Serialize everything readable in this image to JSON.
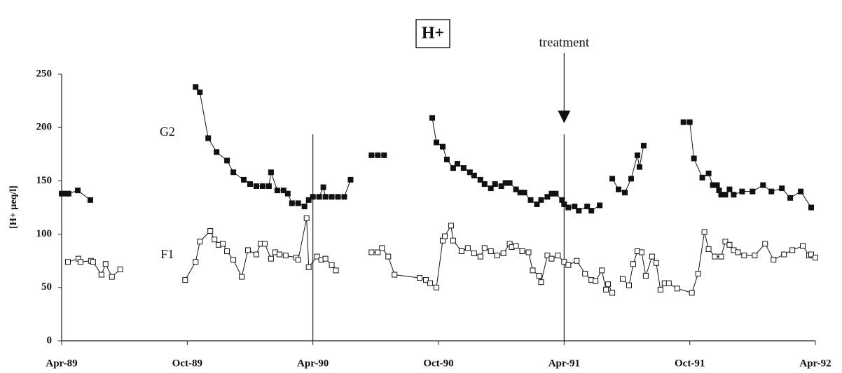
{
  "chart_data": {
    "type": "line",
    "title": "H+",
    "y_label": "[H+ µeq/l]",
    "xlim": [
      0,
      36
    ],
    "xticks": [
      {
        "value": 0,
        "label": "Apr-89"
      },
      {
        "value": 6,
        "label": "Oct-89"
      },
      {
        "value": 12,
        "label": "Apr-90"
      },
      {
        "value": 18,
        "label": "Oct-90"
      },
      {
        "value": 24,
        "label": "Apr-91"
      },
      {
        "value": 30,
        "label": "Oct-91"
      },
      {
        "value": 36,
        "label": "Apr-92"
      }
    ],
    "ylim": [
      0,
      250
    ],
    "yticks": [
      0,
      50,
      100,
      150,
      200,
      250
    ],
    "vlines": [
      12,
      24
    ],
    "annotations": [
      {
        "text": "treatment",
        "x": 24
      }
    ],
    "series": [
      {
        "name": "G2",
        "color": "#111111",
        "marker": "filled",
        "x": [
          0,
          0.23,
          0.33,
          0.77,
          1.37,
          null,
          6.4,
          6.6,
          7.0,
          7.4,
          7.9,
          8.2,
          8.7,
          9.0,
          9.3,
          9.6,
          9.9,
          10.0,
          10.3,
          10.6,
          10.8,
          11.0,
          11.3,
          11.6,
          11.8,
          12.0,
          12.3,
          12.5,
          12.6,
          12.9,
          13.2,
          13.5,
          13.8,
          null,
          14.8,
          15.1,
          15.4,
          null,
          17.7,
          17.9,
          18.2,
          18.4,
          18.7,
          18.9,
          19.2,
          19.5,
          19.7,
          20.0,
          20.2,
          20.5,
          20.7,
          21.0,
          21.2,
          21.4,
          21.7,
          21.9,
          22.1,
          22.4,
          22.7,
          22.9,
          23.2,
          23.4,
          23.6,
          23.9,
          24.0,
          24.2,
          24.5,
          24.7,
          25.1,
          25.3,
          25.7,
          null,
          26.3,
          26.6,
          26.9,
          27.2,
          27.5,
          27.6,
          27.8,
          null,
          29.7,
          30.0,
          30.2,
          30.6,
          30.9,
          31.1,
          31.3,
          31.4,
          31.5,
          31.7,
          31.9,
          32.1,
          32.5,
          33.0,
          33.5,
          33.9,
          34.4,
          34.8,
          35.3,
          35.8
        ],
        "values": [
          138,
          138,
          138,
          141,
          132,
          null,
          238,
          233,
          190,
          177,
          169,
          158,
          151,
          147,
          145,
          145,
          145,
          158,
          141,
          141,
          138,
          129,
          129,
          126,
          132,
          135,
          135,
          144,
          135,
          135,
          135,
          135,
          151,
          null,
          174,
          174,
          174,
          null,
          209,
          186,
          182,
          170,
          162,
          166,
          162,
          158,
          155,
          151,
          147,
          143,
          147,
          145,
          148,
          148,
          142,
          139,
          139,
          132,
          128,
          132,
          135,
          138,
          138,
          132,
          128,
          125,
          126,
          122,
          126,
          122,
          127,
          null,
          152,
          142,
          139,
          152,
          174,
          163,
          183,
          null,
          205,
          205,
          171,
          153,
          157,
          146,
          146,
          141,
          137,
          137,
          142,
          137,
          140,
          140,
          146,
          140,
          143,
          134,
          140,
          125
        ]
      },
      {
        "name": "F1",
        "color": "#111111",
        "marker": "open",
        "x": [
          0.3,
          0.8,
          0.9,
          1.4,
          1.5,
          1.9,
          2.1,
          2.4,
          2.8,
          null,
          5.9,
          6.4,
          6.6,
          7.1,
          7.3,
          7.5,
          7.7,
          7.9,
          8.2,
          8.6,
          8.9,
          9.3,
          9.5,
          9.7,
          10.0,
          10.2,
          10.4,
          10.7,
          11.2,
          11.3,
          11.7,
          11.8,
          12.2,
          12.4,
          12.6,
          12.9,
          13.1,
          null,
          14.8,
          15.1,
          15.3,
          15.6,
          15.9,
          17.1,
          17.4,
          17.6,
          17.9,
          18.2,
          18.3,
          18.6,
          18.7,
          19.1,
          19.4,
          19.7,
          20.0,
          20.2,
          20.5,
          20.8,
          21.1,
          21.4,
          21.5,
          21.7,
          22.0,
          22.3,
          22.5,
          22.8,
          22.9,
          23.2,
          23.4,
          23.7,
          24.0,
          24.2,
          24.6,
          25.0,
          25.3,
          25.5,
          25.8,
          26.0,
          26.1,
          26.3,
          null,
          26.8,
          27.1,
          27.3,
          27.5,
          27.7,
          27.9,
          28.2,
          28.4,
          28.6,
          28.8,
          29.0,
          29.4,
          30.1,
          30.4,
          30.7,
          30.9,
          31.2,
          31.5,
          31.7,
          31.9,
          32.1,
          32.3,
          32.6,
          33.1,
          33.6,
          34.0,
          34.5,
          34.9,
          35.4,
          35.7,
          35.8,
          36.0
        ],
        "values": [
          74,
          77,
          74,
          75,
          74,
          62,
          72,
          60,
          67,
          null,
          57,
          74,
          93,
          103,
          95,
          90,
          91,
          84,
          76,
          60,
          85,
          81,
          91,
          91,
          77,
          83,
          81,
          80,
          78,
          76,
          115,
          69,
          79,
          76,
          77,
          71,
          66,
          null,
          83,
          83,
          87,
          79,
          62,
          59,
          57,
          54,
          50,
          94,
          98,
          108,
          94,
          84,
          87,
          82,
          79,
          87,
          84,
          80,
          82,
          91,
          88,
          89,
          84,
          83,
          66,
          61,
          55,
          80,
          77,
          80,
          74,
          71,
          75,
          63,
          57,
          56,
          66,
          48,
          53,
          45,
          null,
          58,
          52,
          72,
          84,
          83,
          61,
          79,
          73,
          48,
          54,
          54,
          49,
          45,
          63,
          102,
          86,
          79,
          79,
          93,
          90,
          85,
          83,
          80,
          80,
          91,
          76,
          81,
          85,
          89,
          80,
          81,
          78
        ]
      }
    ]
  }
}
